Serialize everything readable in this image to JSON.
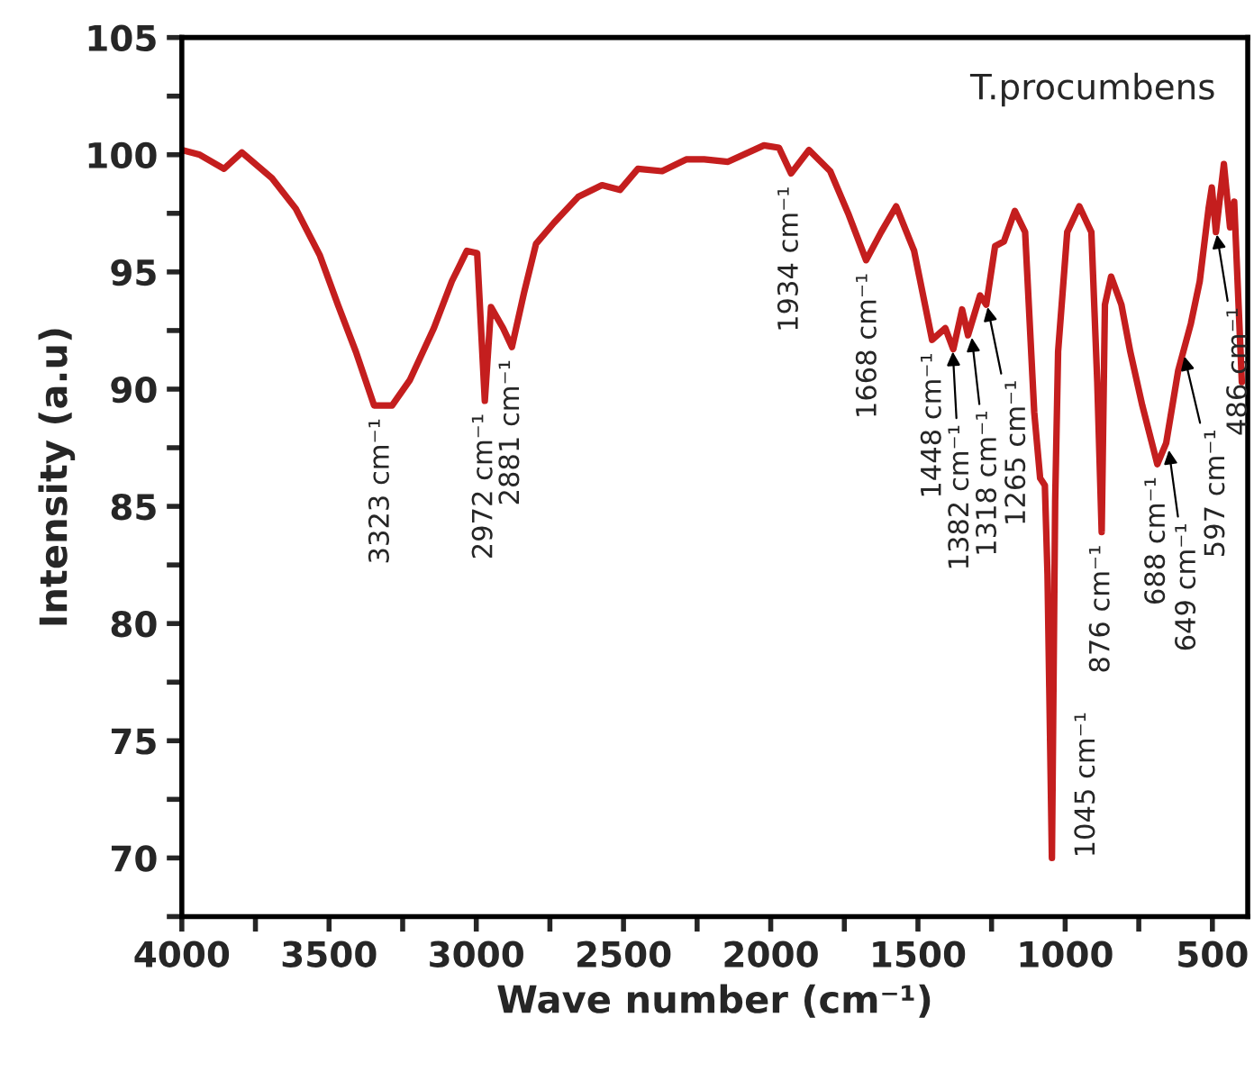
{
  "chart_data": {
    "type": "line",
    "xlabel": "Wave number (cm⁻¹)",
    "ylabel": "Intensity (a.u)",
    "xlim": [
      4000,
      380
    ],
    "ylim": [
      67.5,
      105
    ],
    "xticks": [
      4000,
      {
        "value": 3750,
        "label": null
      },
      3500,
      {
        "value": 3250,
        "label": null
      },
      3000,
      {
        "value": 2750,
        "label": null
      },
      2500,
      {
        "value": 2250,
        "label": null
      },
      2000,
      {
        "value": 1750,
        "label": null
      },
      1500,
      {
        "value": 1250,
        "label": null
      },
      1000,
      {
        "value": 750,
        "label": null
      },
      500
    ],
    "yticks": [
      {
        "value": 67.5,
        "label": null
      },
      70,
      {
        "value": 72.5,
        "label": null
      },
      75,
      {
        "value": 77.5,
        "label": null
      },
      80,
      {
        "value": 82.5,
        "label": null
      },
      85,
      {
        "value": 87.5,
        "label": null
      },
      90,
      {
        "value": 92.5,
        "label": null
      },
      95,
      {
        "value": 97.5,
        "label": null
      },
      100,
      {
        "value": 102.5,
        "label": null
      },
      105
    ],
    "grid": false,
    "line_style": "solid",
    "marker": "none",
    "series": [
      {
        "color": "#c41e1e",
        "x": [
          4000,
          3939,
          3857,
          3796,
          3694,
          3613,
          3531,
          3470,
          3409,
          3347,
          3286,
          3225,
          3144,
          3083,
          3032,
          2997,
          2971,
          2950,
          2909,
          2879,
          2838,
          2797,
          2736,
          2654,
          2573,
          2512,
          2451,
          2369,
          2287,
          2226,
          2145,
          2023,
          1972,
          1931,
          1870,
          1798,
          1737,
          1676,
          1625,
          1574,
          1513,
          1452,
          1407,
          1380,
          1350,
          1330,
          1289,
          1268,
          1238,
          1208,
          1171,
          1136,
          1105,
          1085,
          1069,
          1060,
          1045,
          1034,
          1024,
          993,
          952,
          911,
          891,
          876,
          865,
          844,
          809,
          779,
          738,
          687,
          657,
          616,
          573,
          543,
          513,
          502,
          488,
          461,
          440,
          426,
          400
        ],
        "values": [
          100.2,
          100.0,
          99.4,
          100.1,
          99.0,
          97.7,
          95.7,
          93.6,
          91.6,
          89.3,
          89.3,
          90.4,
          92.6,
          94.6,
          95.9,
          95.8,
          89.5,
          93.5,
          92.6,
          91.8,
          94.1,
          96.2,
          97.1,
          98.2,
          98.7,
          98.5,
          99.4,
          99.3,
          99.8,
          99.8,
          99.7,
          100.4,
          100.3,
          99.2,
          100.2,
          99.3,
          97.5,
          95.5,
          96.7,
          97.8,
          95.9,
          92.1,
          92.6,
          91.7,
          93.4,
          92.3,
          94.0,
          93.6,
          96.1,
          96.3,
          97.6,
          96.7,
          89.0,
          86.2,
          85.9,
          82.1,
          70.0,
          85.2,
          91.6,
          96.7,
          97.8,
          96.7,
          90.3,
          83.9,
          93.6,
          94.8,
          93.6,
          91.6,
          89.3,
          86.8,
          87.7,
          90.8,
          92.8,
          94.6,
          97.7,
          98.6,
          96.7,
          99.6,
          96.9,
          98.0,
          90.3
        ]
      }
    ],
    "annotations": [
      "T.procumbens",
      {
        "text": "3323 cm⁻¹",
        "x": 3323,
        "y": 89.3
      },
      {
        "text": "2972 cm⁻¹",
        "x": 2972,
        "y": 89.5
      },
      {
        "text": "2881 cm⁻¹",
        "x": 2881,
        "y": 91.8
      },
      {
        "text": "1934 cm⁻¹",
        "x": 1934,
        "y": 99.2
      },
      {
        "text": "1668 cm⁻¹",
        "x": 1668,
        "y": 95.5
      },
      {
        "text": "1448 cm⁻¹",
        "x": 1448,
        "y": 92.1
      },
      {
        "text": "1382 cm⁻¹",
        "x": 1382,
        "y": 91.7
      },
      {
        "text": "1318 cm⁻¹",
        "x": 1318,
        "y": 92.3
      },
      {
        "text": "1265 cm⁻¹",
        "x": 1265,
        "y": 93.6
      },
      {
        "text": "1045 cm⁻¹",
        "x": 1045,
        "y": 70.0
      },
      {
        "text": "876 cm⁻¹",
        "x": 876,
        "y": 83.9
      },
      {
        "text": "688 cm⁻¹",
        "x": 688,
        "y": 86.8
      },
      {
        "text": "649 cm⁻¹",
        "x": 649,
        "y": 87.5
      },
      {
        "text": "597 cm⁻¹",
        "x": 597,
        "y": 91.5
      },
      {
        "text": "486 cm⁻¹",
        "x": 486,
        "y": 96.7
      }
    ]
  }
}
